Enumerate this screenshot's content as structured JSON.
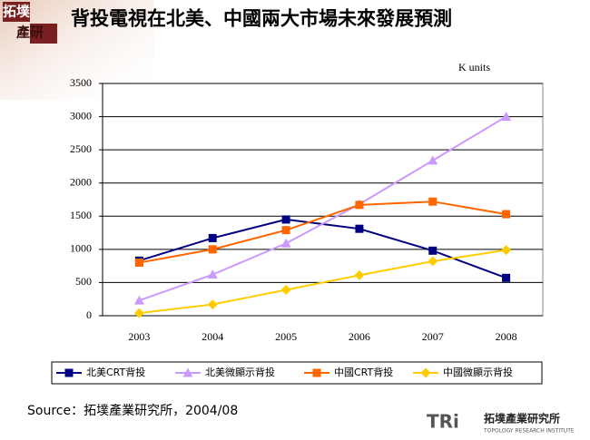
{
  "chart_data": {
    "type": "line",
    "title": "背投電視在北美、中國兩大市場未來發展預測",
    "unit_label": "K units",
    "categories": [
      "2003",
      "2004",
      "2005",
      "2006",
      "2007",
      "2008"
    ],
    "series": [
      {
        "name": "北美CRT背投",
        "color": "#000080",
        "marker": "square",
        "values": [
          830,
          1170,
          1450,
          1310,
          980,
          570
        ]
      },
      {
        "name": "北美微顯示背投",
        "color": "#cc99ff",
        "marker": "triangle",
        "values": [
          230,
          620,
          1090,
          1680,
          2340,
          3000
        ]
      },
      {
        "name": "中國CRT背投",
        "color": "#ff6600",
        "marker": "square",
        "values": [
          800,
          1000,
          1290,
          1670,
          1720,
          1530
        ]
      },
      {
        "name": "中國微顯示背投",
        "color": "#ffcc00",
        "marker": "diamond",
        "values": [
          40,
          170,
          390,
          610,
          820,
          990
        ]
      }
    ],
    "ylim": [
      0,
      3500
    ],
    "yticks": [
      0,
      500,
      1000,
      1500,
      2000,
      2500,
      3000,
      3500
    ],
    "grid": true
  },
  "source": "Source：拓墣產業研究所，2004/08",
  "logo_top": [
    "拓墣",
    "產研"
  ],
  "logo_bottom": {
    "mark": "TRi",
    "name": "拓墣產業研究所",
    "subtitle": "TOPOLOGY RESEARCH INSTITUTE"
  }
}
